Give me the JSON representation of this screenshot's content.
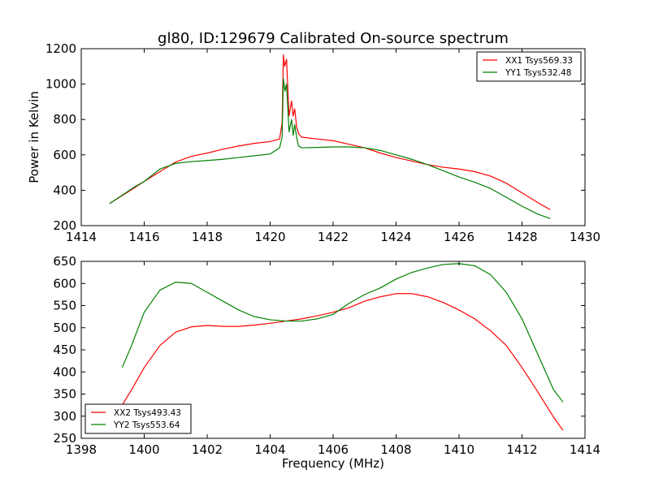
{
  "title": "gl80, ID:129679 Calibrated On-source spectrum",
  "colors": {
    "red": "#ff0000",
    "green": "#008000"
  },
  "chart_data": [
    {
      "type": "line",
      "ylabel": "Power in Kelvin",
      "xlabel": "",
      "xlim": [
        1414,
        1430
      ],
      "ylim": [
        200,
        1200
      ],
      "xticks": [
        1414,
        1416,
        1418,
        1420,
        1422,
        1424,
        1426,
        1428,
        1430
      ],
      "yticks": [
        200,
        400,
        600,
        800,
        1000,
        1200
      ],
      "legend_placement": "top-right",
      "series": [
        {
          "name": "XX1 Tsys569.33",
          "color": "#ff0000",
          "x": [
            1414.9,
            1415.3,
            1415.7,
            1416.0,
            1416.5,
            1417.0,
            1417.5,
            1418.0,
            1418.5,
            1419.0,
            1419.5,
            1420.0,
            1420.3,
            1420.38,
            1420.42,
            1420.46,
            1420.52,
            1420.6,
            1420.68,
            1420.73,
            1420.78,
            1420.84,
            1420.9,
            1421.0,
            1421.5,
            1422.0,
            1422.5,
            1423.0,
            1423.5,
            1424.0,
            1424.5,
            1425.0,
            1425.5,
            1426.0,
            1426.5,
            1427.0,
            1427.5,
            1428.0,
            1428.5,
            1428.9
          ],
          "y": [
            325,
            370,
            415,
            450,
            505,
            560,
            592,
            610,
            632,
            650,
            665,
            675,
            690,
            780,
            1165,
            1100,
            1140,
            820,
            905,
            820,
            860,
            760,
            720,
            700,
            690,
            680,
            660,
            640,
            610,
            585,
            565,
            545,
            530,
            520,
            505,
            480,
            440,
            385,
            330,
            290
          ]
        },
        {
          "name": "YY1 Tsys532.48",
          "color": "#008000",
          "x": [
            1414.9,
            1415.3,
            1415.7,
            1416.0,
            1416.5,
            1417.0,
            1417.5,
            1418.0,
            1418.5,
            1419.0,
            1419.5,
            1420.0,
            1420.3,
            1420.38,
            1420.42,
            1420.47,
            1420.52,
            1420.6,
            1420.68,
            1420.73,
            1420.78,
            1420.84,
            1420.9,
            1421.0,
            1421.5,
            1422.0,
            1422.5,
            1423.0,
            1423.5,
            1424.0,
            1424.5,
            1425.0,
            1425.5,
            1426.0,
            1426.5,
            1427.0,
            1427.5,
            1428.0,
            1428.5,
            1428.9
          ],
          "y": [
            325,
            372,
            420,
            450,
            520,
            552,
            562,
            568,
            575,
            585,
            595,
            605,
            640,
            700,
            1030,
            960,
            1000,
            730,
            800,
            710,
            770,
            700,
            650,
            640,
            642,
            645,
            645,
            640,
            625,
            600,
            575,
            545,
            510,
            475,
            445,
            410,
            360,
            310,
            265,
            240
          ]
        }
      ]
    },
    {
      "type": "line",
      "ylabel": "",
      "xlabel": "Frequency (MHz)",
      "xlim": [
        1398,
        1414
      ],
      "ylim": [
        250,
        650
      ],
      "xticks": [
        1398,
        1400,
        1402,
        1404,
        1406,
        1408,
        1410,
        1412,
        1414
      ],
      "yticks": [
        250,
        300,
        350,
        400,
        450,
        500,
        550,
        600,
        650
      ],
      "legend_placement": "bottom-left",
      "series": [
        {
          "name": "XX2 Tsys493.43",
          "color": "#ff0000",
          "x": [
            1399.3,
            1399.6,
            1400.0,
            1400.5,
            1401.0,
            1401.5,
            1402.0,
            1402.5,
            1403.0,
            1403.5,
            1404.0,
            1404.5,
            1405.0,
            1405.5,
            1406.0,
            1406.5,
            1407.0,
            1407.5,
            1408.0,
            1408.5,
            1409.0,
            1409.5,
            1410.0,
            1410.5,
            1411.0,
            1411.5,
            1412.0,
            1412.5,
            1413.0,
            1413.3
          ],
          "y": [
            325,
            360,
            410,
            460,
            490,
            502,
            505,
            503,
            503,
            506,
            510,
            515,
            520,
            527,
            535,
            545,
            560,
            570,
            577,
            577,
            570,
            557,
            540,
            520,
            493,
            460,
            410,
            355,
            298,
            268
          ]
        },
        {
          "name": "YY2 Tsys553.64",
          "color": "#008000",
          "x": [
            1399.3,
            1399.6,
            1400.0,
            1400.5,
            1401.0,
            1401.5,
            1402.0,
            1402.5,
            1403.0,
            1403.5,
            1404.0,
            1404.5,
            1405.0,
            1405.5,
            1406.0,
            1406.5,
            1407.0,
            1407.5,
            1408.0,
            1408.5,
            1409.0,
            1409.5,
            1410.0,
            1410.5,
            1411.0,
            1411.5,
            1412.0,
            1412.5,
            1413.0,
            1413.3
          ],
          "y": [
            410,
            460,
            535,
            585,
            603,
            600,
            580,
            560,
            540,
            525,
            518,
            515,
            515,
            520,
            530,
            555,
            575,
            590,
            610,
            625,
            635,
            643,
            645,
            640,
            620,
            580,
            520,
            440,
            360,
            332
          ]
        }
      ]
    }
  ]
}
